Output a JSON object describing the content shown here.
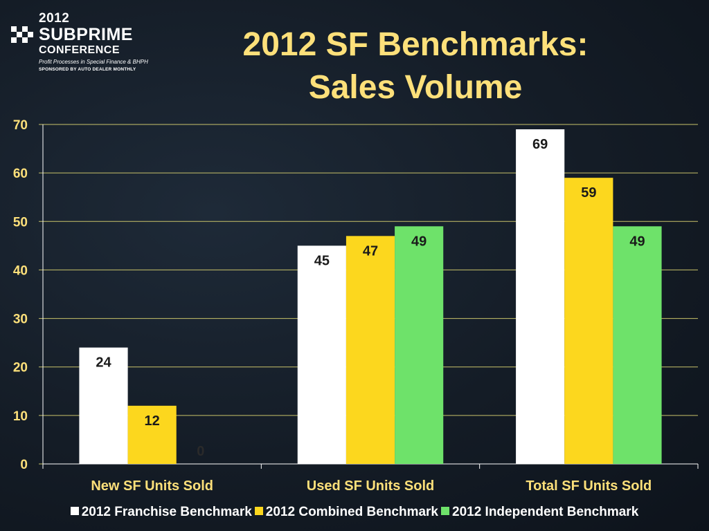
{
  "logo": {
    "year": "2012",
    "name": "SUBPRIME",
    "subname": "CONFERENCE",
    "tagline": "Profit Processes in Special Finance & BHPH",
    "sponsor": "SPONSORED BY AUTO DEALER MONTHLY"
  },
  "title_line1": "2012 SF Benchmarks:",
  "title_line2": "Sales Volume",
  "chart_data": {
    "type": "bar",
    "title": "2012 SF Benchmarks: Sales Volume",
    "categories": [
      "New SF Units Sold",
      "Used SF Units Sold",
      "Total SF Units Sold"
    ],
    "series": [
      {
        "name": "2012 Franchise Benchmark",
        "values": [
          24,
          45,
          69
        ],
        "color": "#ffffff"
      },
      {
        "name": "2012 Combined Benchmark",
        "values": [
          12,
          47,
          59
        ],
        "color": "#fcd71e"
      },
      {
        "name": "2012 Independent Benchmark",
        "values": [
          0,
          49,
          49
        ],
        "color": "#6ee26a"
      }
    ],
    "ylim": [
      0,
      70
    ],
    "yticks": [
      0,
      10,
      20,
      30,
      40,
      50,
      60,
      70
    ],
    "grid": true,
    "gridline_color": "#c9c36a",
    "legend_position": "bottom",
    "data_labels": true
  }
}
